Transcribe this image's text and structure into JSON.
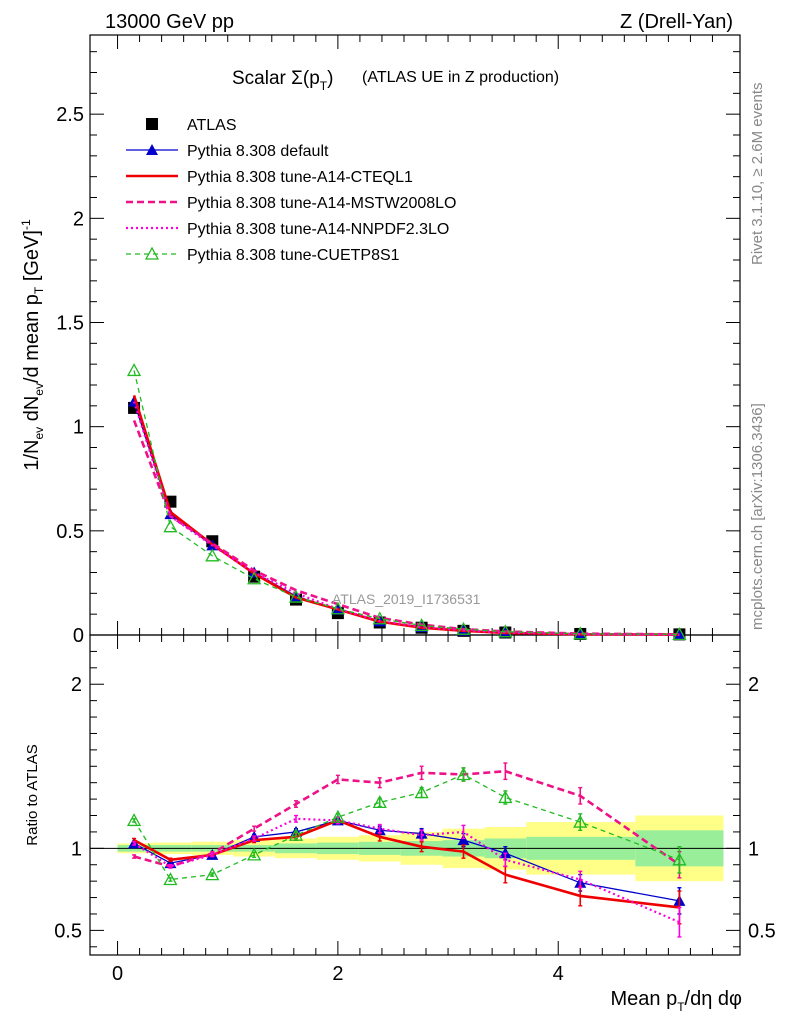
{
  "header": {
    "left": "13000 GeV pp",
    "right": "Z (Drell-Yan)"
  },
  "side_labels": {
    "rivet": "Rivet 3.1.10, ≥ 2.6M events",
    "mcplots": "mcplots.cern.ch [arXiv:1306.3436]"
  },
  "chart_data": [
    {
      "type": "line",
      "panel": "main",
      "title_prefix": "Scalar Σ(p",
      "title_sub": "T",
      "title_close": ")",
      "title_suffix": "(ATLAS UE in Z production)",
      "ylabel_parts": [
        "1/N",
        "ev",
        " dN",
        "ev",
        "/d mean p",
        "T",
        " [GeV]",
        "-1"
      ],
      "watermark": "ATLAS_2019_I1736531",
      "xlim": [
        -0.25,
        5.65
      ],
      "ylim": [
        0,
        2.88
      ],
      "yticks": [
        0,
        0.5,
        1,
        1.5,
        2,
        2.5
      ],
      "ytick_labels": [
        "0",
        "0.5",
        "1",
        "1.5",
        "2",
        "2.5"
      ],
      "x": [
        0.15,
        0.48,
        0.86,
        1.24,
        1.62,
        2.0,
        2.38,
        2.76,
        3.14,
        3.52,
        4.2,
        5.1
      ],
      "series": [
        {
          "name": "ATLAS",
          "color": "#000000",
          "style": "data",
          "marker": "square",
          "values": [
            1.09,
            0.64,
            0.45,
            0.28,
            0.17,
            0.105,
            0.06,
            0.035,
            0.02,
            0.012,
            0.005,
            0.003
          ]
        },
        {
          "name": "Pythia 8.308 default",
          "color": "#0000cc",
          "style": "solid-thin",
          "marker": "triangle",
          "values": [
            1.12,
            0.58,
            0.43,
            0.3,
            0.186,
            0.122,
            0.066,
            0.038,
            0.021,
            0.0115,
            0.004,
            0.002
          ]
        },
        {
          "name": "Pythia 8.308 tune-A14-CTEQL1",
          "color": "#ee0000",
          "style": "solid-thick",
          "marker": "none",
          "values": [
            1.15,
            0.59,
            0.435,
            0.295,
            0.18,
            0.123,
            0.064,
            0.035,
            0.02,
            0.01,
            0.0035,
            0.002
          ]
        },
        {
          "name": "Pythia 8.308 tune-A14-MSTW2008LO",
          "color": "#ee1188",
          "style": "dashed",
          "marker": "none",
          "values": [
            1.03,
            0.57,
            0.44,
            0.31,
            0.215,
            0.148,
            0.082,
            0.05,
            0.028,
            0.017,
            0.0066,
            0.003
          ]
        },
        {
          "name": "Pythia 8.308 tune-A14-NNPDF2.3LO",
          "color": "#ff00dd",
          "style": "dotted",
          "marker": "none",
          "values": [
            1.12,
            0.57,
            0.43,
            0.3,
            0.2,
            0.125,
            0.067,
            0.038,
            0.022,
            0.011,
            0.004,
            0.0018
          ]
        },
        {
          "name": "Pythia 8.308 tune-CUETP8S1",
          "color": "#22bb22",
          "style": "dashed-thin",
          "marker": "triangle-open",
          "values": [
            1.27,
            0.52,
            0.38,
            0.27,
            0.182,
            0.126,
            0.078,
            0.046,
            0.028,
            0.016,
            0.0058,
            0.003
          ]
        }
      ]
    },
    {
      "type": "line",
      "panel": "ratio",
      "ylabel": "Ratio to ATLAS",
      "xlabel_parts": [
        "Mean p",
        "T",
        "/dη dφ"
      ],
      "xlim": [
        -0.25,
        5.65
      ],
      "ylim": [
        0.35,
        2.3
      ],
      "xticks": [
        0,
        2,
        4
      ],
      "xtick_labels": [
        "0",
        "2",
        "4"
      ],
      "yticks": [
        0.5,
        1,
        2
      ],
      "ytick_labels": [
        "0.5",
        "1",
        "2"
      ],
      "bins": [
        [
          0.0,
          0.3
        ],
        [
          0.3,
          0.67
        ],
        [
          0.67,
          1.05
        ],
        [
          1.05,
          1.43
        ],
        [
          1.43,
          1.81
        ],
        [
          1.81,
          2.19
        ],
        [
          2.19,
          2.57
        ],
        [
          2.57,
          2.95
        ],
        [
          2.95,
          3.33
        ],
        [
          3.33,
          3.71
        ],
        [
          3.71,
          4.7
        ],
        [
          4.7,
          5.5
        ]
      ],
      "band_stat": [
        0.02,
        0.02,
        0.02,
        0.02,
        0.03,
        0.035,
        0.04,
        0.045,
        0.05,
        0.06,
        0.07,
        0.11
      ],
      "band_total": [
        0.03,
        0.035,
        0.04,
        0.05,
        0.06,
        0.07,
        0.08,
        0.1,
        0.12,
        0.13,
        0.16,
        0.2
      ],
      "series": [
        {
          "name": "Pythia 8.308 default",
          "color": "#0000cc",
          "style": "solid-thin",
          "marker": "triangle",
          "values": [
            1.03,
            0.91,
            0.96,
            1.07,
            1.1,
            1.17,
            1.11,
            1.09,
            1.05,
            0.97,
            0.79,
            0.68
          ],
          "errors": [
            0.01,
            0.01,
            0.01,
            0.015,
            0.02,
            0.02,
            0.025,
            0.03,
            0.04,
            0.04,
            0.05,
            0.08
          ]
        },
        {
          "name": "Pythia 8.308 tune-A14-CTEQL1",
          "color": "#ee0000",
          "style": "solid-thick",
          "marker": "none",
          "values": [
            1.05,
            0.93,
            0.96,
            1.05,
            1.07,
            1.17,
            1.07,
            1.01,
            0.98,
            0.84,
            0.71,
            0.64
          ],
          "errors": [
            0.01,
            0.01,
            0.01,
            0.015,
            0.02,
            0.02,
            0.025,
            0.03,
            0.04,
            0.05,
            0.06,
            0.1
          ]
        },
        {
          "name": "Pythia 8.308 tune-A14-MSTW2008LO",
          "color": "#ee1188",
          "style": "dashed",
          "marker": "none",
          "values": [
            0.95,
            0.89,
            0.97,
            1.12,
            1.27,
            1.42,
            1.4,
            1.46,
            1.45,
            1.47,
            1.32,
            0.9
          ],
          "errors": [
            0.01,
            0.01,
            0.01,
            0.015,
            0.02,
            0.025,
            0.03,
            0.04,
            0.04,
            0.05,
            0.05,
            0.08
          ]
        },
        {
          "name": "Pythia 8.308 tune-A14-NNPDF2.3LO",
          "color": "#ff00dd",
          "style": "dotted",
          "marker": "none",
          "values": [
            1.03,
            0.89,
            0.96,
            1.06,
            1.18,
            1.17,
            1.12,
            1.08,
            1.1,
            0.93,
            0.81,
            0.55
          ],
          "errors": [
            0.01,
            0.01,
            0.01,
            0.015,
            0.02,
            0.02,
            0.025,
            0.03,
            0.04,
            0.04,
            0.05,
            0.09
          ]
        },
        {
          "name": "Pythia 8.308 tune-CUETP8S1",
          "color": "#22bb22",
          "style": "dashed-thin",
          "marker": "triangle-open",
          "values": [
            1.17,
            0.81,
            0.84,
            0.96,
            1.08,
            1.19,
            1.28,
            1.34,
            1.45,
            1.31,
            1.16,
            0.93
          ],
          "errors": [
            0.01,
            0.01,
            0.01,
            0.015,
            0.02,
            0.02,
            0.025,
            0.03,
            0.04,
            0.04,
            0.05,
            0.08
          ]
        }
      ]
    }
  ]
}
